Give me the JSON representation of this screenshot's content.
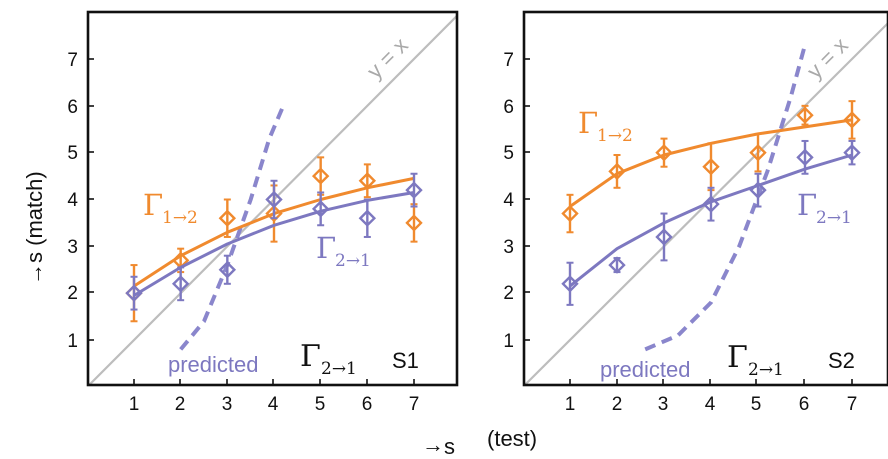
{
  "figure": {
    "xlabel_arrow": "→",
    "xlabel_s": "s",
    "xlabel_paren": "(test)",
    "ylabel": "→s (match)"
  },
  "chart_data": [
    {
      "type": "scatter",
      "panel_label": "S1",
      "reference_label": "y = x",
      "xlim": [
        0,
        8
      ],
      "ylim": [
        0,
        8
      ],
      "xticks": [
        1,
        2,
        3,
        4,
        5,
        6,
        7
      ],
      "yticks": [
        1,
        2,
        3,
        4,
        5,
        6,
        7
      ],
      "grid": false,
      "predicted": {
        "word": "predicted",
        "gamma": "Γ",
        "sub": "2→1",
        "style": "dashed",
        "color": "#8a86cc",
        "points": [
          [
            2.0,
            0.8
          ],
          [
            2.5,
            1.4
          ],
          [
            3.0,
            2.6
          ],
          [
            3.5,
            4.0
          ],
          [
            3.9,
            5.3
          ],
          [
            4.2,
            6.0
          ]
        ]
      },
      "series": [
        {
          "name": "Γ1→2",
          "gamma": "Γ",
          "sub": "1→2",
          "color": "#f08a2e",
          "x": [
            1,
            2,
            3,
            4,
            5,
            6,
            7
          ],
          "y": [
            2.0,
            2.7,
            3.6,
            3.7,
            4.5,
            4.4,
            3.5
          ],
          "err": [
            0.6,
            0.25,
            0.4,
            0.6,
            0.4,
            0.35,
            0.4
          ],
          "fit": [
            2.15,
            2.8,
            3.3,
            3.7,
            4.0,
            4.25,
            4.45
          ]
        },
        {
          "name": "Γ2→1",
          "gamma": "Γ",
          "sub": "2→1",
          "color": "#7d78c0",
          "x": [
            1,
            2,
            3,
            4,
            5,
            6,
            7
          ],
          "y": [
            2.0,
            2.2,
            2.5,
            4.0,
            3.8,
            3.6,
            4.2
          ],
          "err": [
            0.35,
            0.35,
            0.3,
            0.4,
            0.35,
            0.4,
            0.35
          ],
          "fit": [
            1.95,
            2.55,
            3.05,
            3.45,
            3.75,
            3.98,
            4.15
          ]
        }
      ]
    },
    {
      "type": "scatter",
      "panel_label": "S2",
      "reference_label": "y = x",
      "xlim": [
        0,
        8
      ],
      "ylim": [
        0,
        8
      ],
      "xticks": [
        1,
        2,
        3,
        4,
        5,
        6,
        7
      ],
      "yticks": [
        1,
        2,
        3,
        4,
        5,
        6,
        7
      ],
      "grid": false,
      "predicted": {
        "word": "predicted",
        "gamma": "Γ",
        "sub": "2→1",
        "style": "dashed",
        "color": "#8a86cc",
        "points": [
          [
            2.6,
            0.8
          ],
          [
            3.3,
            1.1
          ],
          [
            4.0,
            1.8
          ],
          [
            4.6,
            3.0
          ],
          [
            5.2,
            4.6
          ],
          [
            5.7,
            6.2
          ],
          [
            6.0,
            7.3
          ]
        ]
      },
      "series": [
        {
          "name": "Γ1→2",
          "gamma": "Γ",
          "sub": "1→2",
          "color": "#f08a2e",
          "x": [
            1,
            2,
            3,
            4,
            5,
            6,
            7
          ],
          "y": [
            3.7,
            4.6,
            5.0,
            4.7,
            5.0,
            5.8,
            5.7
          ],
          "err": [
            0.4,
            0.35,
            0.3,
            0.5,
            0.4,
            0.2,
            0.4
          ],
          "fit": [
            3.85,
            4.55,
            4.95,
            5.2,
            5.4,
            5.55,
            5.7
          ]
        },
        {
          "name": "Γ2→1",
          "gamma": "Γ",
          "sub": "2→1",
          "color": "#7d78c0",
          "x": [
            1,
            2,
            3,
            4,
            5,
            6,
            7
          ],
          "y": [
            2.2,
            2.6,
            3.2,
            3.9,
            4.2,
            4.9,
            5.0
          ],
          "err": [
            0.45,
            0.15,
            0.5,
            0.35,
            0.35,
            0.35,
            0.25
          ],
          "fit": [
            2.15,
            2.95,
            3.5,
            3.95,
            4.3,
            4.65,
            4.95
          ]
        }
      ]
    }
  ]
}
